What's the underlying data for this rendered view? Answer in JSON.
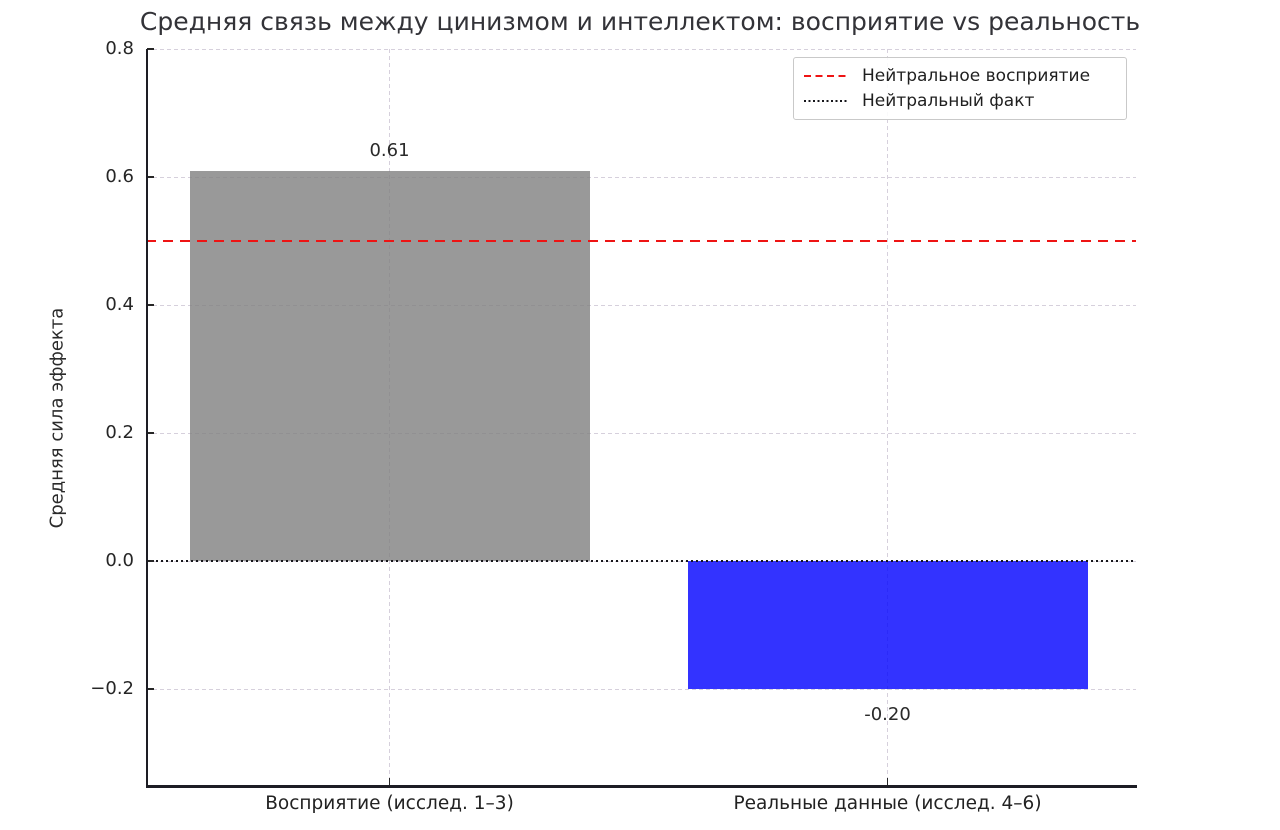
{
  "chart_data": {
    "type": "bar",
    "title": "Средняя связь между цинизмом и интеллектом: восприятие vs реальность",
    "xlabel": "",
    "ylabel": "Средняя сила эффекта",
    "categories": [
      "Восприятие (исслед. 1–3)",
      "Реальные данные (исслед. 4–6)"
    ],
    "values": [
      0.61,
      -0.2
    ],
    "bar_value_labels": [
      "0.61",
      "-0.20"
    ],
    "bar_colors": [
      "rgba(128,128,128,0.8)",
      "rgba(0,0,255,0.8)"
    ],
    "ylim": [
      -0.35,
      0.8
    ],
    "yticks": [
      0.8,
      0.6,
      0.4,
      0.2,
      0.0,
      -0.2
    ],
    "ytick_labels": [
      "0.8",
      "0.6",
      "0.4",
      "0.2",
      "0.0",
      "−0.2"
    ],
    "grid": true,
    "grid_style": "dashed",
    "legend_position": "upper right",
    "reference_lines": [
      {
        "value": 0.5,
        "style": "dashed",
        "color": "#ee1414",
        "label": "Нейтральное восприятие"
      },
      {
        "value": 0.0,
        "style": "dotted",
        "color": "#16161b",
        "label": "Нейтральный факт"
      }
    ]
  },
  "colors": {
    "background": "#ffffff",
    "gridline": "#d6d0dc",
    "spine": "#1d1d24",
    "perception_bar": "rgba(128,128,128,0.8)",
    "reality_bar": "rgba(0,0,255,0.8)",
    "neutral_perception_line": "#ee1414",
    "neutral_fact_line": "#16161b"
  }
}
